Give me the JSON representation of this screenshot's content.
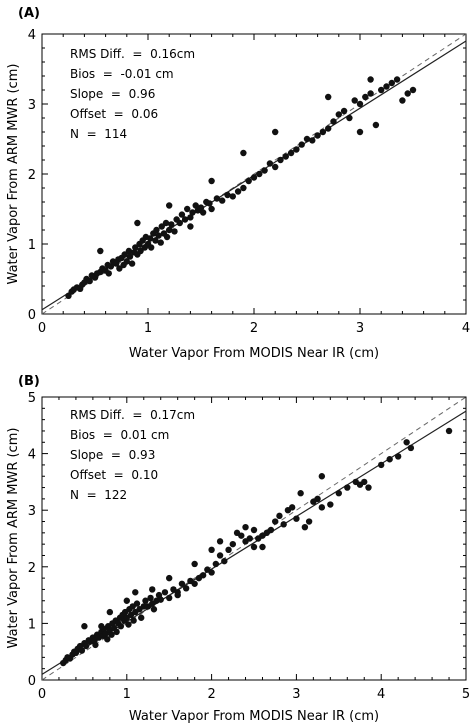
{
  "chart_data": [
    {
      "panel": "(A)",
      "type": "scatter",
      "xlabel": "Water Vapor From MODIS Near IR (cm)",
      "ylabel": "Water Vapor From ARM MWR (cm)",
      "xlim": [
        0,
        4
      ],
      "ylim": [
        0,
        4
      ],
      "xticks": [
        "0",
        "1",
        "2",
        "3",
        "4"
      ],
      "yticks": [
        "0",
        "1",
        "2",
        "3",
        "4"
      ],
      "stats": [
        "RMS Diff.  =  0.16cm",
        "Bios  =  -0.01 cm",
        "Slope  =  0.96",
        "Offset  =  0.06",
        "N  =  114"
      ],
      "fit_line": {
        "slope": 0.96,
        "offset": 0.06,
        "style": "solid"
      },
      "one_to_one_line": {
        "slope": 1,
        "offset": 0,
        "style": "dashed"
      },
      "points": [
        [
          0.25,
          0.26
        ],
        [
          0.28,
          0.32
        ],
        [
          0.3,
          0.35
        ],
        [
          0.33,
          0.38
        ],
        [
          0.36,
          0.36
        ],
        [
          0.38,
          0.42
        ],
        [
          0.4,
          0.45
        ],
        [
          0.42,
          0.5
        ],
        [
          0.45,
          0.47
        ],
        [
          0.47,
          0.55
        ],
        [
          0.5,
          0.52
        ],
        [
          0.52,
          0.58
        ],
        [
          0.55,
          0.6
        ],
        [
          0.57,
          0.65
        ],
        [
          0.6,
          0.62
        ],
        [
          0.62,
          0.7
        ],
        [
          0.63,
          0.58
        ],
        [
          0.65,
          0.68
        ],
        [
          0.67,
          0.75
        ],
        [
          0.7,
          0.72
        ],
        [
          0.72,
          0.78
        ],
        [
          0.73,
          0.65
        ],
        [
          0.75,
          0.8
        ],
        [
          0.77,
          0.7
        ],
        [
          0.78,
          0.85
        ],
        [
          0.8,
          0.75
        ],
        [
          0.82,
          0.9
        ],
        [
          0.83,
          0.82
        ],
        [
          0.85,
          0.72
        ],
        [
          0.87,
          0.88
        ],
        [
          0.88,
          0.95
        ],
        [
          0.9,
          0.85
        ],
        [
          0.92,
          1.0
        ],
        [
          0.93,
          0.9
        ],
        [
          0.95,
          1.05
        ],
        [
          0.97,
          0.95
        ],
        [
          0.98,
          1.1
        ],
        [
          1.0,
          1.0
        ],
        [
          1.02,
          1.08
        ],
        [
          1.03,
          0.95
        ],
        [
          1.05,
          1.15
        ],
        [
          1.07,
          1.05
        ],
        [
          1.08,
          1.2
        ],
        [
          1.1,
          1.12
        ],
        [
          1.12,
          1.02
        ],
        [
          1.13,
          1.25
        ],
        [
          1.15,
          1.15
        ],
        [
          1.17,
          1.3
        ],
        [
          1.18,
          1.1
        ],
        [
          1.2,
          1.2
        ],
        [
          1.22,
          1.28
        ],
        [
          1.25,
          1.18
        ],
        [
          1.27,
          1.35
        ],
        [
          1.3,
          1.3
        ],
        [
          1.32,
          1.42
        ],
        [
          1.35,
          1.35
        ],
        [
          1.37,
          1.5
        ],
        [
          1.4,
          1.38
        ],
        [
          1.42,
          1.45
        ],
        [
          1.45,
          1.55
        ],
        [
          1.47,
          1.48
        ],
        [
          1.5,
          1.52
        ],
        [
          1.52,
          1.45
        ],
        [
          1.55,
          1.6
        ],
        [
          1.58,
          1.58
        ],
        [
          1.6,
          1.5
        ],
        [
          1.65,
          1.65
        ],
        [
          1.7,
          1.62
        ],
        [
          1.75,
          1.7
        ],
        [
          1.8,
          1.68
        ],
        [
          1.85,
          1.75
        ],
        [
          1.9,
          1.8
        ],
        [
          1.95,
          1.9
        ],
        [
          2.0,
          1.95
        ],
        [
          2.05,
          2.0
        ],
        [
          2.1,
          2.05
        ],
        [
          2.15,
          2.15
        ],
        [
          2.2,
          2.1
        ],
        [
          2.25,
          2.2
        ],
        [
          2.3,
          2.25
        ],
        [
          2.35,
          2.3
        ],
        [
          2.4,
          2.35
        ],
        [
          2.45,
          2.42
        ],
        [
          2.5,
          2.5
        ],
        [
          2.55,
          2.48
        ],
        [
          2.6,
          2.55
        ],
        [
          2.65,
          2.6
        ],
        [
          2.7,
          2.65
        ],
        [
          2.75,
          2.75
        ],
        [
          2.8,
          2.85
        ],
        [
          2.85,
          2.9
        ],
        [
          2.9,
          2.8
        ],
        [
          2.95,
          3.05
        ],
        [
          3.0,
          3.0
        ],
        [
          3.05,
          3.1
        ],
        [
          3.1,
          3.15
        ],
        [
          3.15,
          2.7
        ],
        [
          3.2,
          3.2
        ],
        [
          3.25,
          3.25
        ],
        [
          3.3,
          3.3
        ],
        [
          3.35,
          3.35
        ],
        [
          3.4,
          3.05
        ],
        [
          3.45,
          3.15
        ],
        [
          3.5,
          3.2
        ],
        [
          0.55,
          0.9
        ],
        [
          0.9,
          1.3
        ],
        [
          1.2,
          1.55
        ],
        [
          1.6,
          1.9
        ],
        [
          1.9,
          2.3
        ],
        [
          2.2,
          2.6
        ],
        [
          2.7,
          3.1
        ],
        [
          3.1,
          3.35
        ],
        [
          3.0,
          2.6
        ],
        [
          1.4,
          1.25
        ]
      ]
    },
    {
      "panel": "(B)",
      "type": "scatter",
      "xlabel": "Water Vapor From MODIS Near IR (cm)",
      "ylabel": "Water Vapor From ARM MWR (cm)",
      "xlim": [
        0,
        5
      ],
      "ylim": [
        0,
        5
      ],
      "xticks": [
        "0",
        "1",
        "2",
        "3",
        "4",
        "5"
      ],
      "yticks": [
        "0",
        "1",
        "2",
        "3",
        "4",
        "5"
      ],
      "stats": [
        "RMS Diff.  =  0.17cm",
        "Bios  =  0.01 cm",
        "Slope  =  0.93",
        "Offset  =  0.10",
        "N  =  122"
      ],
      "fit_line": {
        "slope": 0.93,
        "offset": 0.1,
        "style": "solid"
      },
      "one_to_one_line": {
        "slope": 1,
        "offset": 0,
        "style": "dashed"
      },
      "points": [
        [
          0.25,
          0.3
        ],
        [
          0.28,
          0.35
        ],
        [
          0.3,
          0.4
        ],
        [
          0.33,
          0.38
        ],
        [
          0.36,
          0.45
        ],
        [
          0.38,
          0.5
        ],
        [
          0.4,
          0.48
        ],
        [
          0.42,
          0.55
        ],
        [
          0.45,
          0.6
        ],
        [
          0.47,
          0.52
        ],
        [
          0.5,
          0.65
        ],
        [
          0.52,
          0.6
        ],
        [
          0.55,
          0.7
        ],
        [
          0.57,
          0.68
        ],
        [
          0.6,
          0.75
        ],
        [
          0.62,
          0.7
        ],
        [
          0.63,
          0.62
        ],
        [
          0.65,
          0.8
        ],
        [
          0.67,
          0.75
        ],
        [
          0.7,
          0.85
        ],
        [
          0.72,
          0.78
        ],
        [
          0.73,
          0.9
        ],
        [
          0.75,
          0.82
        ],
        [
          0.77,
          0.72
        ],
        [
          0.78,
          0.95
        ],
        [
          0.8,
          0.88
        ],
        [
          0.82,
          0.8
        ],
        [
          0.83,
          1.0
        ],
        [
          0.85,
          0.92
        ],
        [
          0.87,
          1.05
        ],
        [
          0.88,
          0.85
        ],
        [
          0.9,
          1.0
        ],
        [
          0.92,
          1.1
        ],
        [
          0.93,
          0.95
        ],
        [
          0.95,
          1.15
        ],
        [
          0.97,
          1.05
        ],
        [
          0.98,
          1.2
        ],
        [
          1.0,
          1.1
        ],
        [
          1.02,
          0.98
        ],
        [
          1.03,
          1.25
        ],
        [
          1.05,
          1.15
        ],
        [
          1.07,
          1.3
        ],
        [
          1.08,
          1.05
        ],
        [
          1.1,
          1.2
        ],
        [
          1.12,
          1.35
        ],
        [
          1.15,
          1.25
        ],
        [
          1.17,
          1.1
        ],
        [
          1.2,
          1.3
        ],
        [
          1.22,
          1.4
        ],
        [
          1.25,
          1.3
        ],
        [
          1.28,
          1.45
        ],
        [
          1.3,
          1.35
        ],
        [
          1.32,
          1.25
        ],
        [
          1.35,
          1.4
        ],
        [
          1.38,
          1.5
        ],
        [
          1.4,
          1.42
        ],
        [
          1.45,
          1.55
        ],
        [
          1.5,
          1.45
        ],
        [
          1.55,
          1.6
        ],
        [
          1.6,
          1.55
        ],
        [
          1.65,
          1.7
        ],
        [
          1.7,
          1.62
        ],
        [
          1.75,
          1.75
        ],
        [
          1.8,
          1.7
        ],
        [
          1.85,
          1.8
        ],
        [
          1.9,
          1.85
        ],
        [
          1.95,
          1.95
        ],
        [
          2.0,
          1.9
        ],
        [
          2.05,
          2.05
        ],
        [
          2.1,
          2.2
        ],
        [
          2.15,
          2.1
        ],
        [
          2.2,
          2.3
        ],
        [
          2.25,
          2.4
        ],
        [
          2.3,
          2.6
        ],
        [
          2.35,
          2.55
        ],
        [
          2.4,
          2.45
        ],
        [
          2.45,
          2.5
        ],
        [
          2.5,
          2.35
        ],
        [
          2.55,
          2.5
        ],
        [
          2.6,
          2.55
        ],
        [
          2.65,
          2.6
        ],
        [
          2.7,
          2.65
        ],
        [
          2.75,
          2.8
        ],
        [
          2.8,
          2.9
        ],
        [
          2.85,
          2.75
        ],
        [
          2.9,
          3.0
        ],
        [
          2.95,
          3.05
        ],
        [
          3.0,
          2.85
        ],
        [
          3.05,
          3.3
        ],
        [
          3.1,
          2.7
        ],
        [
          3.15,
          2.8
        ],
        [
          3.2,
          3.15
        ],
        [
          3.25,
          3.2
        ],
        [
          3.3,
          3.05
        ],
        [
          3.4,
          3.1
        ],
        [
          3.5,
          3.3
        ],
        [
          3.6,
          3.4
        ],
        [
          3.7,
          3.5
        ],
        [
          3.75,
          3.45
        ],
        [
          3.8,
          3.5
        ],
        [
          3.85,
          3.4
        ],
        [
          4.0,
          3.8
        ],
        [
          4.1,
          3.9
        ],
        [
          4.2,
          3.95
        ],
        [
          4.3,
          4.2
        ],
        [
          4.35,
          4.1
        ],
        [
          4.8,
          4.4
        ],
        [
          0.5,
          0.95
        ],
        [
          0.8,
          1.2
        ],
        [
          1.1,
          1.55
        ],
        [
          1.5,
          1.8
        ],
        [
          1.8,
          2.05
        ],
        [
          2.1,
          2.45
        ],
        [
          2.4,
          2.7
        ],
        [
          3.3,
          3.6
        ],
        [
          0.7,
          0.95
        ],
        [
          1.0,
          1.4
        ],
        [
          1.3,
          1.6
        ],
        [
          1.6,
          1.5
        ],
        [
          2.0,
          2.3
        ],
        [
          2.5,
          2.65
        ],
        [
          2.6,
          2.35
        ]
      ]
    }
  ]
}
